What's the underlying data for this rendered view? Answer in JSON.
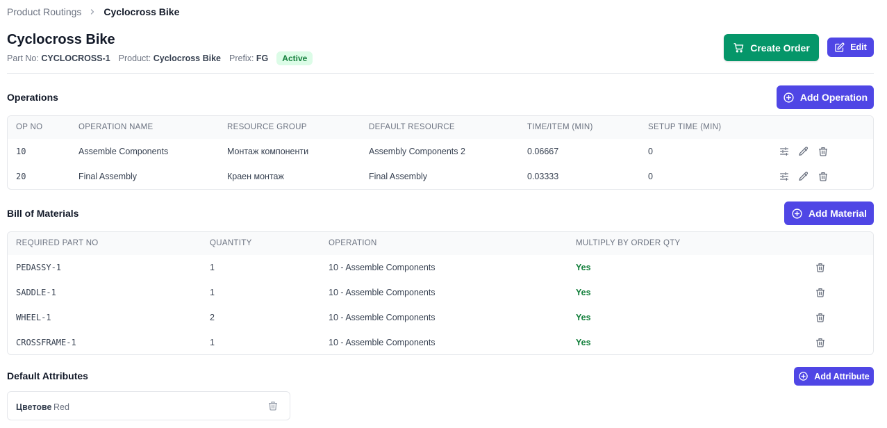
{
  "breadcrumb": {
    "parent": "Product Routings",
    "current": "Cyclocross Bike"
  },
  "header": {
    "title": "Cyclocross Bike",
    "part_no_label": "Part No:",
    "part_no": "CYCLOCROSS-1",
    "product_label": "Product:",
    "product": "Cyclocross Bike",
    "prefix_label": "Prefix:",
    "prefix": "FG",
    "status": "Active",
    "create_order_label": "Create Order",
    "edit_label": "Edit"
  },
  "operations": {
    "title": "Operations",
    "add_label": "Add Operation",
    "columns": [
      "OP NO",
      "OPERATION NAME",
      "RESOURCE GROUP",
      "DEFAULT RESOURCE",
      "TIME/ITEM (MIN)",
      "SETUP TIME (MIN)"
    ],
    "rows": [
      {
        "op_no": "10",
        "name": "Assemble Components",
        "resource_group": "Монтаж компоненти",
        "default_resource": "Assembly Components 2",
        "time_item": "0.06667",
        "setup_time": "0"
      },
      {
        "op_no": "20",
        "name": "Final Assembly",
        "resource_group": "Краен монтаж",
        "default_resource": "Final Assembly",
        "time_item": "0.03333",
        "setup_time": "0"
      }
    ]
  },
  "bom": {
    "title": "Bill of Materials",
    "add_label": "Add Material",
    "columns": [
      "REQUIRED PART NO",
      "QUANTITY",
      "OPERATION",
      "MULTIPLY BY ORDER QTY"
    ],
    "rows": [
      {
        "part_no": "PEDASSY-1",
        "quantity": "1",
        "operation": "10 - Assemble Components",
        "multiply": "Yes"
      },
      {
        "part_no": "SADDLE-1",
        "quantity": "1",
        "operation": "10 - Assemble Components",
        "multiply": "Yes"
      },
      {
        "part_no": "WHEEL-1",
        "quantity": "2",
        "operation": "10 - Assemble Components",
        "multiply": "Yes"
      },
      {
        "part_no": "CROSSFRAME-1",
        "quantity": "1",
        "operation": "10 - Assemble Components",
        "multiply": "Yes"
      }
    ]
  },
  "attributes": {
    "title": "Default Attributes",
    "add_label": "Add Attribute",
    "items": [
      {
        "name": "Цветове",
        "value": "Red"
      }
    ]
  },
  "icons": {
    "breadcrumb_separator": "chevron-right-icon",
    "create_order": "cart-icon",
    "edit": "edit-square-icon",
    "add": "plus-circle-icon",
    "row_settings": "sliders-icon",
    "row_edit": "pencil-icon",
    "row_delete": "trash-icon"
  },
  "colors": {
    "primary": "#4f46e5",
    "success": "#059669",
    "status_badge_bg": "#dcfce7",
    "status_badge_text": "#15803d",
    "yes_text": "#15803d"
  }
}
